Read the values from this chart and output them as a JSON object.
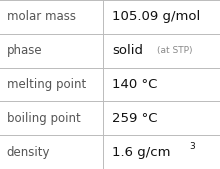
{
  "rows": [
    {
      "label": "molar mass",
      "value": "105.09 g/mol",
      "suffix": null,
      "superscript": null
    },
    {
      "label": "phase",
      "value": "solid",
      "suffix": "(at STP)",
      "superscript": null
    },
    {
      "label": "melting point",
      "value": "140 °C",
      "suffix": null,
      "superscript": null
    },
    {
      "label": "boiling point",
      "value": "259 °C",
      "suffix": null,
      "superscript": null
    },
    {
      "label": "density",
      "value": "1.6 g/cm",
      "suffix": null,
      "superscript": "3"
    }
  ],
  "col_split": 0.47,
  "bg_color": "#ffffff",
  "grid_color": "#bbbbbb",
  "label_color": "#555555",
  "value_color": "#111111",
  "suffix_color": "#888888",
  "label_fontsize": 8.5,
  "value_fontsize": 9.5,
  "suffix_fontsize": 6.5,
  "super_fontsize": 6.5
}
